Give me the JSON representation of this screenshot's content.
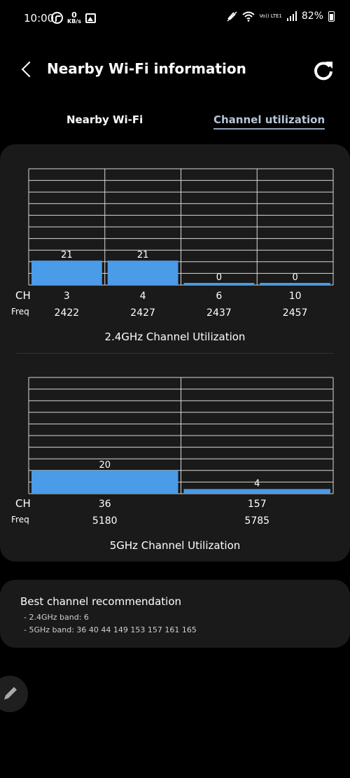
{
  "status_bar": {
    "time": "10:00",
    "net_speed_value": "0",
    "net_speed_unit": "KB/s",
    "volte": "Vo)) LTE1",
    "battery": "82%"
  },
  "header": {
    "title": "Nearby Wi-Fi information"
  },
  "tabs": [
    {
      "label": "Nearby Wi-Fi",
      "selected": false
    },
    {
      "label": "Channel utilization",
      "selected": true
    }
  ],
  "row_labels": {
    "ch": "CH",
    "freq": "Freq"
  },
  "chart_data": [
    {
      "type": "bar",
      "title": "2.4GHz Channel Utilization",
      "categories": [
        "3",
        "4",
        "6",
        "10"
      ],
      "freqs": [
        "2422",
        "2427",
        "2437",
        "2457"
      ],
      "values": [
        21,
        21,
        0,
        0
      ],
      "value_labels": [
        "21",
        "21",
        "0",
        "0"
      ],
      "ylim": [
        0,
        100
      ],
      "grid": true,
      "bar_color": "#4a9be8"
    },
    {
      "type": "bar",
      "title": "5GHz Channel Utilization",
      "categories": [
        "36",
        "157"
      ],
      "freqs": [
        "5180",
        "5785"
      ],
      "values": [
        20,
        4
      ],
      "value_labels": [
        "20",
        "4"
      ],
      "ylim": [
        0,
        100
      ],
      "grid": true,
      "bar_color": "#4a9be8"
    }
  ],
  "recommendation": {
    "heading": "Best channel recommendation",
    "lines": [
      "- 2.4GHz band: 6",
      "- 5GHz band: 36 40 44 149 153 157 161 165"
    ]
  }
}
